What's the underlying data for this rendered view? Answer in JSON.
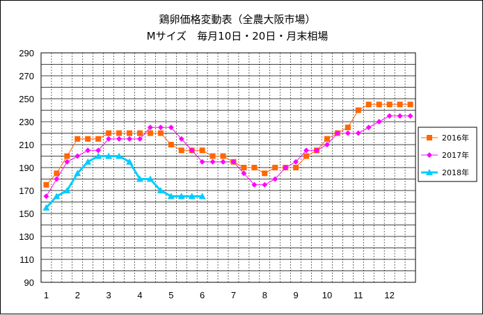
{
  "chart_data": {
    "type": "line",
    "title": "鶏卵価格変動表（全農大阪市場）",
    "subtitle": "Mサイズ　毎月10日・20日・月末相場",
    "xlabel": "",
    "ylabel": "",
    "ylim": [
      90,
      290
    ],
    "yticks": [
      "90",
      "110",
      "130",
      "150",
      "170",
      "190",
      "210",
      "230",
      "250",
      "270",
      "290"
    ],
    "xticks": [
      "1",
      "2",
      "3",
      "4",
      "5",
      "6",
      "7",
      "8",
      "9",
      "10",
      "11",
      "12"
    ],
    "grid": true,
    "legend_position": "right",
    "series": [
      {
        "name": "2016年",
        "color": "#ff6600",
        "marker": "square",
        "values": [
          175,
          185,
          200,
          215,
          215,
          215,
          220,
          220,
          220,
          220,
          220,
          220,
          210,
          205,
          205,
          205,
          200,
          200,
          195,
          190,
          190,
          185,
          190,
          190,
          190,
          200,
          205,
          215,
          220,
          225,
          240,
          245,
          245,
          245,
          245,
          245
        ]
      },
      {
        "name": "2017年",
        "color": "#ff00ff",
        "marker": "diamond",
        "values": [
          165,
          180,
          195,
          200,
          205,
          205,
          215,
          215,
          215,
          215,
          225,
          225,
          225,
          215,
          205,
          195,
          195,
          195,
          195,
          185,
          175,
          175,
          180,
          190,
          195,
          205,
          205,
          210,
          220,
          220,
          220,
          225,
          230,
          235,
          235,
          235
        ]
      },
      {
        "name": "2018年",
        "color": "#00ccff",
        "marker": "triangle",
        "values": [
          155,
          165,
          170,
          185,
          195,
          200,
          200,
          200,
          195,
          180,
          180,
          170,
          165,
          165,
          165,
          165
        ]
      }
    ]
  }
}
